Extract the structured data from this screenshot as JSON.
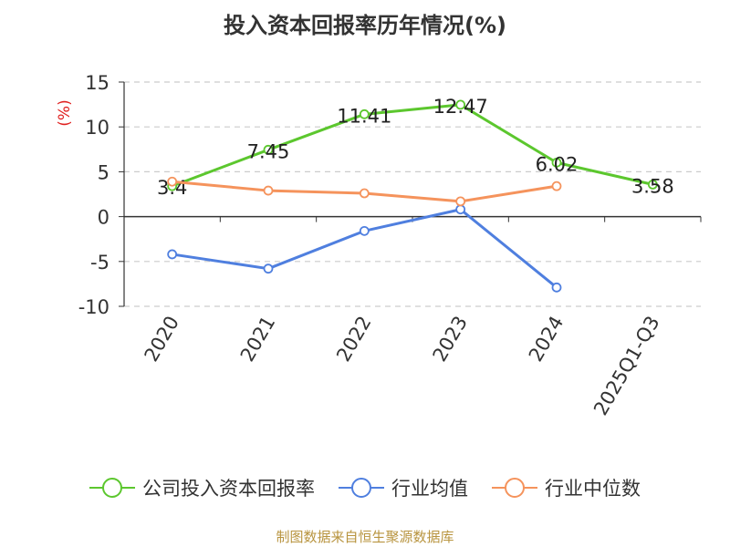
{
  "chart_data": {
    "type": "line",
    "title": "投入资本回报率历年情况(%)",
    "ylabel": "(%)",
    "categories": [
      "2020",
      "2021",
      "2022",
      "2023",
      "2024",
      "2025Q1-Q3"
    ],
    "ylim": [
      -10,
      15
    ],
    "yticks": [
      15,
      10,
      5,
      0,
      -5,
      -10
    ],
    "grid": true,
    "legend_position": "bottom",
    "series": [
      {
        "name": "公司投入资本回报率",
        "color": "#5cc72e",
        "values": [
          3.4,
          7.45,
          11.41,
          12.47,
          6.02,
          3.58
        ],
        "show_labels": true
      },
      {
        "name": "行业均值",
        "color": "#4f7fdf",
        "values": [
          -4.2,
          -5.8,
          -1.6,
          0.8,
          -7.9,
          null
        ],
        "show_labels": false
      },
      {
        "name": "行业中位数",
        "color": "#f5935c",
        "values": [
          3.9,
          2.9,
          2.6,
          1.7,
          3.4,
          null
        ],
        "show_labels": false
      }
    ]
  },
  "labels": {
    "ylabel_color": "#e0201f",
    "source": "制图数据来自恒生聚源数据库"
  }
}
